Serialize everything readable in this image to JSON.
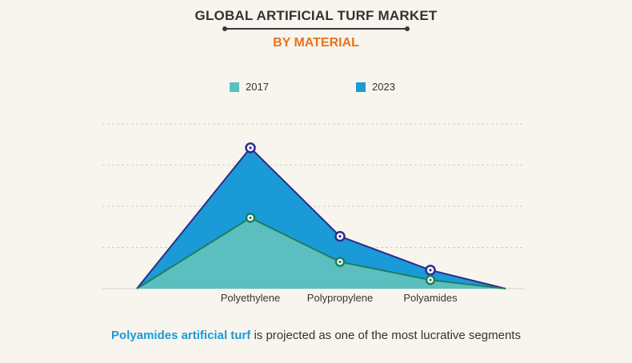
{
  "header": {
    "title": "GLOBAL ARTIFICIAL TURF MARKET",
    "subtitle": "BY MATERIAL"
  },
  "footer": {
    "highlight": "Polyamides artificial turf",
    "rest": " is projected as one of the most lucrative segments"
  },
  "colors": {
    "series_2017": "#5bbfbf",
    "series_2023": "#1a9ad6",
    "line_2017": "#1e7e5e",
    "line_2023": "#2b2d8c",
    "subtitle": "#e8731c",
    "highlight": "#1a9ad6"
  },
  "chart_data": {
    "type": "area",
    "categories": [
      "",
      "Polyethylene",
      "Polypropylene",
      "Polyamides",
      ""
    ],
    "series": [
      {
        "name": "2017",
        "values": [
          0,
          1.72,
          0.65,
          0.21,
          0
        ]
      },
      {
        "name": "2023",
        "values": [
          0,
          3.42,
          1.27,
          0.45,
          0
        ]
      }
    ],
    "ylim": [
      0,
      4
    ],
    "grid": true,
    "legend": "top-center"
  }
}
